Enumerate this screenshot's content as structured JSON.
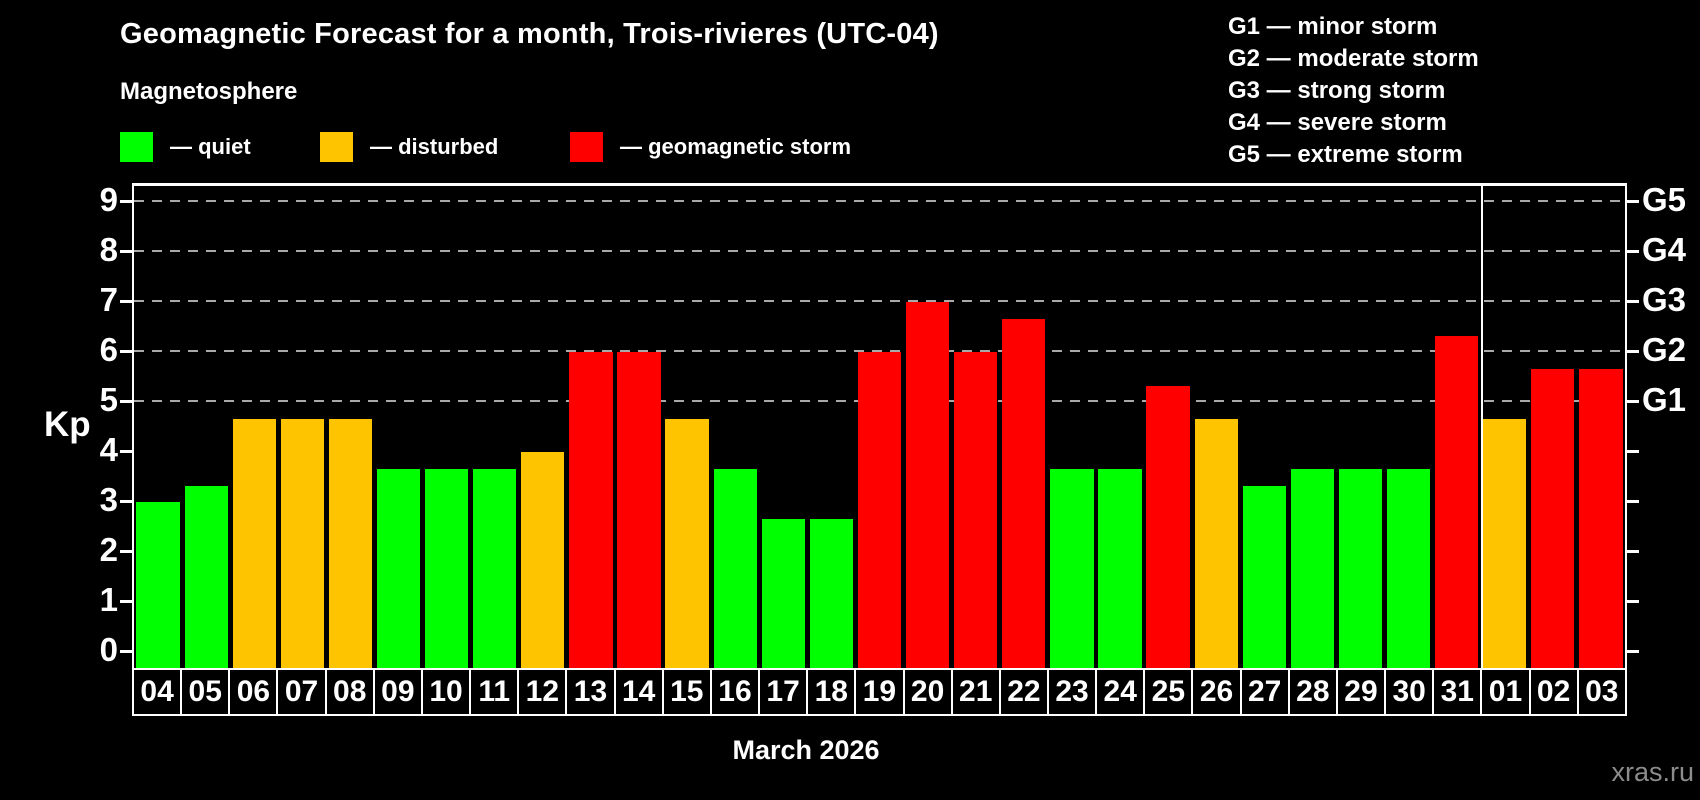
{
  "header": {
    "title": "Geomagnetic Forecast for a month, Trois-rivieres (UTC-04)",
    "subtitle": "Magnetosphere"
  },
  "legend": {
    "items": [
      {
        "key": "quiet",
        "label": "— quiet",
        "color": "#00ff00"
      },
      {
        "key": "disturbed",
        "label": "— disturbed",
        "color": "#ffc400"
      },
      {
        "key": "storm",
        "label": "— geomagnetic storm",
        "color": "#ff0000"
      }
    ]
  },
  "g_legend": {
    "lines": [
      "G1 — minor storm",
      "G2 — moderate storm",
      "G3 — strong storm",
      "G4 — severe storm",
      "G5 — extreme storm"
    ]
  },
  "axis": {
    "kp_label": "Kp",
    "month_label": "March 2026"
  },
  "watermark": "xras.ru",
  "colors": {
    "quiet": "#00ff00",
    "disturbed": "#ffc400",
    "storm": "#ff0000",
    "grid": "#a9a9a9",
    "frame": "#ffffff"
  },
  "chart_data": {
    "type": "bar",
    "title": "Geomagnetic Forecast for a month, Trois-rivieres (UTC-04)",
    "xlabel": "March 2026",
    "ylabel": "Kp",
    "ylim": [
      0,
      9
    ],
    "y_ticks": [
      0,
      1,
      2,
      3,
      4,
      5,
      6,
      7,
      8,
      9
    ],
    "gridlines_at": [
      5,
      6,
      7,
      8,
      9
    ],
    "right_axis_labels": {
      "5": "G1",
      "6": "G2",
      "7": "G3",
      "8": "G4",
      "9": "G5"
    },
    "legend_position": "top",
    "categories": [
      "04",
      "05",
      "06",
      "07",
      "08",
      "09",
      "10",
      "11",
      "12",
      "13",
      "14",
      "15",
      "16",
      "17",
      "18",
      "19",
      "20",
      "21",
      "22",
      "23",
      "24",
      "25",
      "26",
      "27",
      "28",
      "29",
      "30",
      "31",
      "01",
      "02",
      "03"
    ],
    "values": [
      3.0,
      3.33,
      4.67,
      4.67,
      4.67,
      3.67,
      3.67,
      3.67,
      4.0,
      6.0,
      6.0,
      4.67,
      3.67,
      2.67,
      2.67,
      6.0,
      7.0,
      6.0,
      6.67,
      3.67,
      3.67,
      5.33,
      4.67,
      3.33,
      3.67,
      3.67,
      3.67,
      6.33,
      4.67,
      5.67,
      5.67
    ],
    "statuses": [
      "quiet",
      "quiet",
      "disturbed",
      "disturbed",
      "disturbed",
      "quiet",
      "quiet",
      "quiet",
      "disturbed",
      "storm",
      "storm",
      "disturbed",
      "quiet",
      "quiet",
      "quiet",
      "storm",
      "storm",
      "storm",
      "storm",
      "quiet",
      "quiet",
      "storm",
      "disturbed",
      "quiet",
      "quiet",
      "quiet",
      "quiet",
      "storm",
      "disturbed",
      "storm",
      "storm"
    ],
    "month_separator_after_index": 27
  }
}
